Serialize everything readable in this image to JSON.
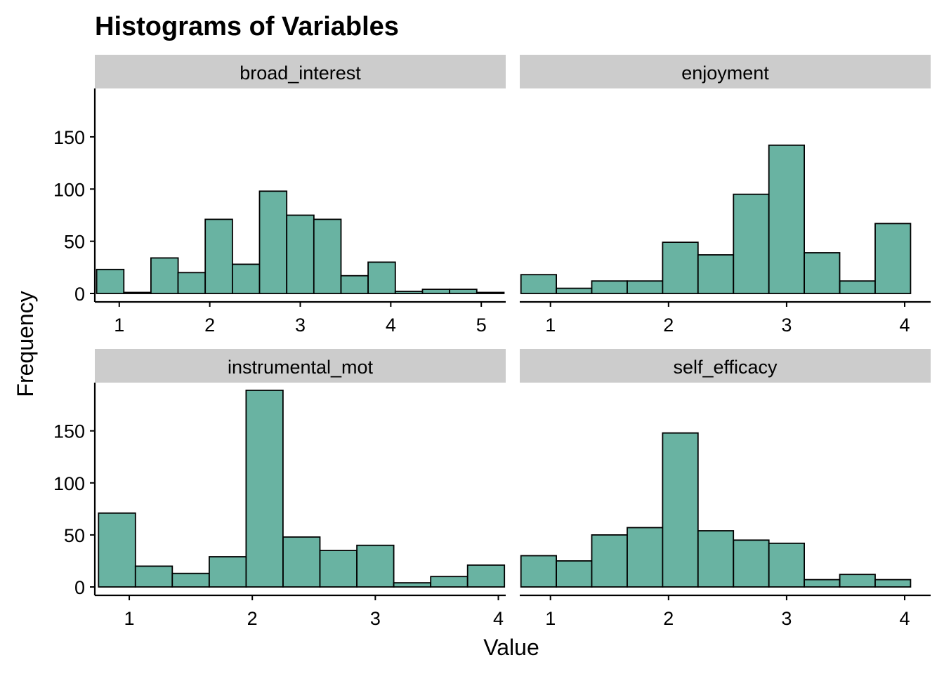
{
  "colors": {
    "bar_fill": "#69b3a2",
    "bar_stroke": "#000000",
    "strip_fill": "#cccccc",
    "axis": "#000000"
  },
  "chart_data": {
    "type": "bar",
    "title": "Histograms of Variables",
    "xlabel": "Value",
    "ylabel": "Frequency",
    "ylim": [
      0,
      195
    ],
    "y_ticks": [
      0,
      50,
      100,
      150
    ],
    "grid": false,
    "facets": [
      {
        "name": "broad_interest",
        "xlim": [
          0.73,
          5.27
        ],
        "x_ticks": [
          1,
          2,
          3,
          4,
          5
        ],
        "bins": [
          {
            "x0": 0.75,
            "x1": 1.05,
            "count": 23
          },
          {
            "x0": 1.05,
            "x1": 1.35,
            "count": 1
          },
          {
            "x0": 1.35,
            "x1": 1.65,
            "count": 34
          },
          {
            "x0": 1.65,
            "x1": 1.95,
            "count": 20
          },
          {
            "x0": 1.95,
            "x1": 2.25,
            "count": 71
          },
          {
            "x0": 2.25,
            "x1": 2.55,
            "count": 28
          },
          {
            "x0": 2.55,
            "x1": 2.85,
            "count": 98
          },
          {
            "x0": 2.85,
            "x1": 3.15,
            "count": 75
          },
          {
            "x0": 3.15,
            "x1": 3.45,
            "count": 71
          },
          {
            "x0": 3.45,
            "x1": 3.75,
            "count": 17
          },
          {
            "x0": 3.75,
            "x1": 4.05,
            "count": 30
          },
          {
            "x0": 4.05,
            "x1": 4.35,
            "count": 2
          },
          {
            "x0": 4.35,
            "x1": 4.65,
            "count": 4
          },
          {
            "x0": 4.65,
            "x1": 4.95,
            "count": 4
          },
          {
            "x0": 4.95,
            "x1": 5.25,
            "count": 1
          }
        ]
      },
      {
        "name": "enjoyment",
        "xlim": [
          0.74,
          4.22
        ],
        "x_ticks": [
          1,
          2,
          3,
          4
        ],
        "bins": [
          {
            "x0": 0.75,
            "x1": 1.05,
            "count": 18
          },
          {
            "x0": 1.05,
            "x1": 1.35,
            "count": 5
          },
          {
            "x0": 1.35,
            "x1": 1.65,
            "count": 12
          },
          {
            "x0": 1.65,
            "x1": 1.95,
            "count": 12
          },
          {
            "x0": 1.95,
            "x1": 2.25,
            "count": 49
          },
          {
            "x0": 2.25,
            "x1": 2.55,
            "count": 37
          },
          {
            "x0": 2.55,
            "x1": 2.85,
            "count": 95
          },
          {
            "x0": 2.85,
            "x1": 3.15,
            "count": 142
          },
          {
            "x0": 3.15,
            "x1": 3.45,
            "count": 39
          },
          {
            "x0": 3.45,
            "x1": 3.75,
            "count": 12
          },
          {
            "x0": 3.75,
            "x1": 4.05,
            "count": 67
          }
        ]
      },
      {
        "name": "instrumental_mot",
        "xlim": [
          0.72,
          4.06
        ],
        "x_ticks": [
          1,
          2,
          3,
          4
        ],
        "bins": [
          {
            "x0": 0.75,
            "x1": 1.05,
            "count": 71
          },
          {
            "x0": 1.05,
            "x1": 1.35,
            "count": 20
          },
          {
            "x0": 1.35,
            "x1": 1.65,
            "count": 13
          },
          {
            "x0": 1.65,
            "x1": 1.95,
            "count": 29
          },
          {
            "x0": 1.95,
            "x1": 2.25,
            "count": 189
          },
          {
            "x0": 2.25,
            "x1": 2.55,
            "count": 48
          },
          {
            "x0": 2.55,
            "x1": 2.85,
            "count": 35
          },
          {
            "x0": 2.85,
            "x1": 3.15,
            "count": 40
          },
          {
            "x0": 3.15,
            "x1": 3.45,
            "count": 4
          },
          {
            "x0": 3.45,
            "x1": 3.75,
            "count": 10
          },
          {
            "x0": 3.75,
            "x1": 4.05,
            "count": 21
          }
        ]
      },
      {
        "name": "self_efficacy",
        "xlim": [
          0.74,
          4.22
        ],
        "x_ticks": [
          1,
          2,
          3,
          4
        ],
        "bins": [
          {
            "x0": 0.75,
            "x1": 1.05,
            "count": 30
          },
          {
            "x0": 1.05,
            "x1": 1.35,
            "count": 25
          },
          {
            "x0": 1.35,
            "x1": 1.65,
            "count": 50
          },
          {
            "x0": 1.65,
            "x1": 1.95,
            "count": 57
          },
          {
            "x0": 1.95,
            "x1": 2.25,
            "count": 148
          },
          {
            "x0": 2.25,
            "x1": 2.55,
            "count": 54
          },
          {
            "x0": 2.55,
            "x1": 2.85,
            "count": 45
          },
          {
            "x0": 2.85,
            "x1": 3.15,
            "count": 42
          },
          {
            "x0": 3.15,
            "x1": 3.45,
            "count": 7
          },
          {
            "x0": 3.45,
            "x1": 3.75,
            "count": 12
          },
          {
            "x0": 3.75,
            "x1": 4.05,
            "count": 7
          }
        ]
      }
    ]
  }
}
